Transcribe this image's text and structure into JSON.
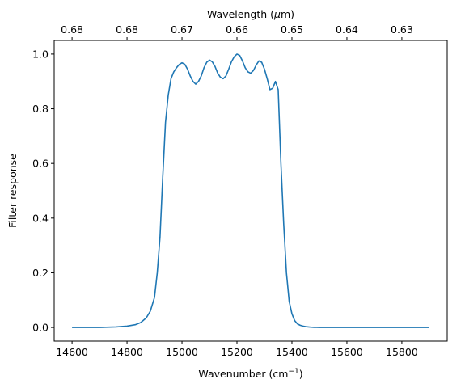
{
  "chart_data": {
    "type": "line",
    "xlabel": "Wavenumber (cm",
    "xlabel_sup": "−1",
    "xlabel_tail": ")",
    "ylabel": "Filter response",
    "top_xlabel": "Wavelength (",
    "top_xlabel_mu": "μ",
    "top_xlabel_tail": "m)",
    "xlim": [
      14535,
      15965
    ],
    "ylim": [
      -0.05,
      1.05
    ],
    "grid": false,
    "line_color": "#1f77b4",
    "x_ticks": [
      14600,
      14800,
      15000,
      15200,
      15400,
      15600,
      15800
    ],
    "x_tick_labels": [
      "14600",
      "14800",
      "15000",
      "15200",
      "15400",
      "15600",
      "15800"
    ],
    "y_ticks": [
      0.0,
      0.2,
      0.4,
      0.6,
      0.8,
      1.0
    ],
    "y_tick_labels": [
      "0.0",
      "0.2",
      "0.4",
      "0.6",
      "0.8",
      "1.0"
    ],
    "top_ticks": [
      14600,
      14800,
      15000,
      15200,
      15400,
      15600,
      15800
    ],
    "top_tick_labels": [
      "0.68",
      "0.68",
      "0.67",
      "0.66",
      "0.65",
      "0.64",
      "0.63"
    ],
    "series": [
      {
        "x": [
          14600,
          14700,
          14760,
          14800,
          14830,
          14850,
          14870,
          14885,
          14900,
          14910,
          14920,
          14930,
          14940,
          14950,
          14960,
          14970,
          14980,
          14990,
          15000,
          15010,
          15020,
          15030,
          15040,
          15050,
          15060,
          15070,
          15080,
          15090,
          15100,
          15110,
          15120,
          15130,
          15140,
          15150,
          15160,
          15170,
          15180,
          15190,
          15200,
          15210,
          15220,
          15230,
          15240,
          15250,
          15260,
          15270,
          15280,
          15290,
          15300,
          15310,
          15320,
          15330,
          15340,
          15350,
          15360,
          15370,
          15380,
          15390,
          15400,
          15410,
          15420,
          15430,
          15440,
          15450,
          15460,
          15470,
          15480,
          15490,
          15500,
          15520,
          15560,
          15640,
          15900
        ],
        "y": [
          0.0,
          0.0,
          0.002,
          0.005,
          0.01,
          0.018,
          0.035,
          0.06,
          0.11,
          0.2,
          0.33,
          0.55,
          0.75,
          0.85,
          0.91,
          0.935,
          0.95,
          0.962,
          0.968,
          0.963,
          0.945,
          0.92,
          0.9,
          0.89,
          0.9,
          0.92,
          0.95,
          0.97,
          0.978,
          0.972,
          0.955,
          0.93,
          0.915,
          0.91,
          0.92,
          0.945,
          0.972,
          0.99,
          1.0,
          0.995,
          0.975,
          0.95,
          0.935,
          0.93,
          0.94,
          0.96,
          0.975,
          0.97,
          0.945,
          0.91,
          0.87,
          0.875,
          0.9,
          0.87,
          0.6,
          0.38,
          0.2,
          0.095,
          0.05,
          0.025,
          0.013,
          0.008,
          0.005,
          0.003,
          0.002,
          0.001,
          0.0005,
          0.0003,
          0.0002,
          0.0001,
          0.0,
          0.0,
          0.0
        ]
      }
    ]
  }
}
